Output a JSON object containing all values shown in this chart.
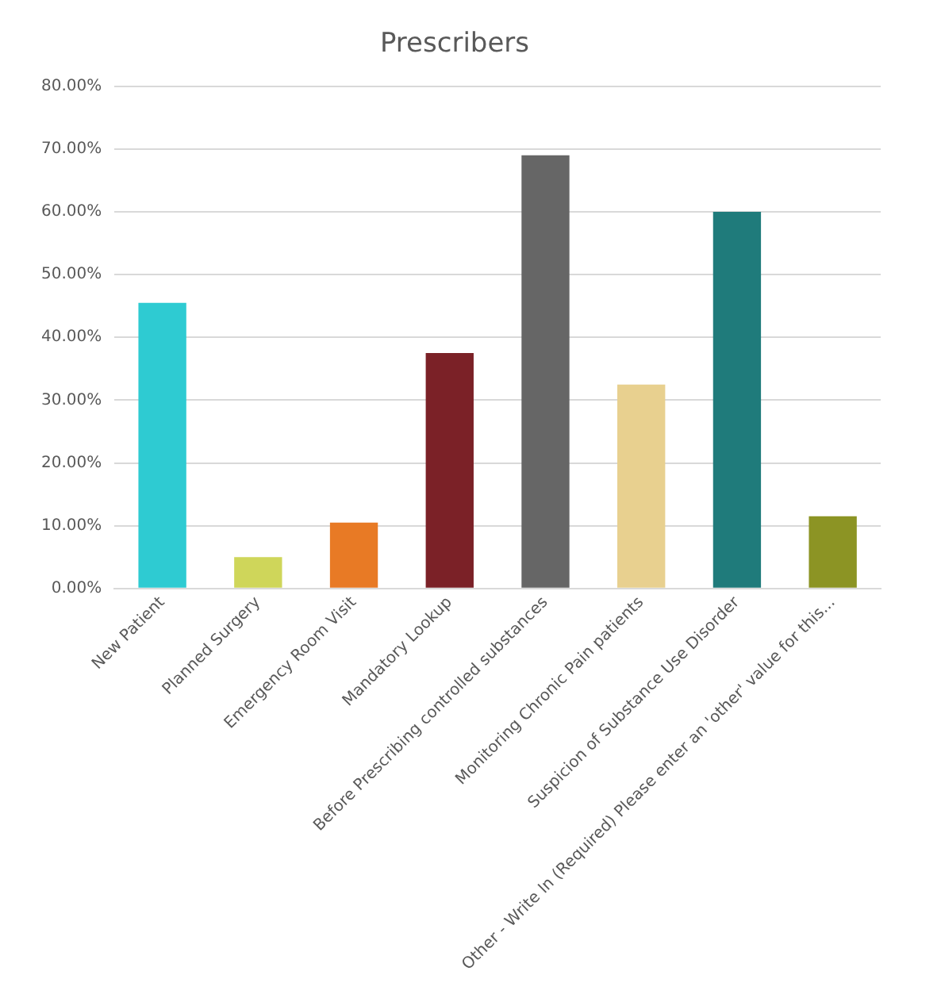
{
  "chart_data": {
    "type": "bar",
    "title": "Prescribers",
    "categories": [
      "New Patient",
      "Planned Surgery",
      "Emergency Room Visit",
      "Mandatory Lookup",
      "Before Prescribing controlled substances",
      "Monitoring Chronic Pain patients",
      "Suspicion of Substance Use Disorder",
      "Other - Write In (Required) Please enter an 'other' value for this..."
    ],
    "values": [
      45.5,
      5,
      10.5,
      37.5,
      69,
      32.5,
      60,
      11.5
    ],
    "colors": [
      "#2ecbd2",
      "#cfd65a",
      "#e87a25",
      "#7b2127",
      "#666666",
      "#e8d08f",
      "#1f7b7b",
      "#8c9424"
    ],
    "ylim": [
      0,
      80
    ],
    "yticks": [
      {
        "value": 0,
        "label": "0.00%"
      },
      {
        "value": 10,
        "label": "10.00%"
      },
      {
        "value": 20,
        "label": "20.00%"
      },
      {
        "value": 30,
        "label": "30.00%"
      },
      {
        "value": 40,
        "label": "40.00%"
      },
      {
        "value": 50,
        "label": "50.00%"
      },
      {
        "value": 60,
        "label": "60.00%"
      },
      {
        "value": 70,
        "label": "70.00%"
      },
      {
        "value": 80,
        "label": "80.00%"
      }
    ],
    "grid": "y",
    "legend": false
  }
}
